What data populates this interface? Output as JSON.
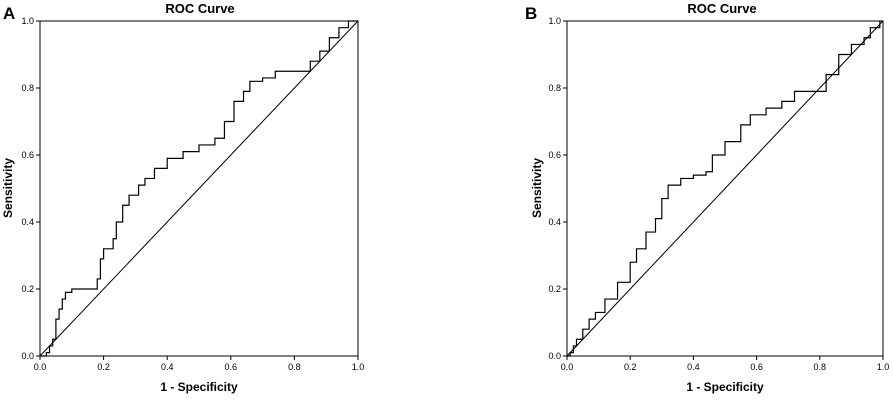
{
  "chart_data": [
    {
      "type": "line",
      "panel_label": "A",
      "title": "ROC Curve",
      "xlabel": "1 - Specificity",
      "ylabel": "Sensitivity",
      "xlim": [
        0,
        1
      ],
      "ylim": [
        0,
        1
      ],
      "xticks": [
        "0.0",
        "0.2",
        "0.4",
        "0.6",
        "0.8",
        "1.0"
      ],
      "yticks": [
        "0.0",
        "0.2",
        "0.4",
        "0.6",
        "0.8",
        "1.0"
      ],
      "grid": false,
      "series": [
        {
          "points": [
            [
              0,
              0
            ],
            [
              0.02,
              0.01
            ],
            [
              0.03,
              0.03
            ],
            [
              0.04,
              0.05
            ],
            [
              0.05,
              0.11
            ],
            [
              0.06,
              0.14
            ],
            [
              0.07,
              0.17
            ],
            [
              0.08,
              0.19
            ],
            [
              0.1,
              0.2
            ],
            [
              0.17,
              0.2
            ],
            [
              0.18,
              0.23
            ],
            [
              0.19,
              0.29
            ],
            [
              0.2,
              0.32
            ],
            [
              0.23,
              0.35
            ],
            [
              0.24,
              0.4
            ],
            [
              0.26,
              0.45
            ],
            [
              0.28,
              0.48
            ],
            [
              0.31,
              0.51
            ],
            [
              0.33,
              0.53
            ],
            [
              0.36,
              0.56
            ],
            [
              0.4,
              0.59
            ],
            [
              0.45,
              0.61
            ],
            [
              0.5,
              0.63
            ],
            [
              0.55,
              0.65
            ],
            [
              0.58,
              0.7
            ],
            [
              0.61,
              0.76
            ],
            [
              0.64,
              0.79
            ],
            [
              0.66,
              0.82
            ],
            [
              0.7,
              0.83
            ],
            [
              0.74,
              0.85
            ],
            [
              0.8,
              0.85
            ],
            [
              0.85,
              0.88
            ],
            [
              0.88,
              0.91
            ],
            [
              0.91,
              0.95
            ],
            [
              0.94,
              0.98
            ],
            [
              0.97,
              1.0
            ],
            [
              1.0,
              1.0
            ]
          ]
        },
        {
          "points": [
            [
              0,
              0
            ],
            [
              1,
              1
            ]
          ]
        }
      ]
    },
    {
      "type": "line",
      "panel_label": "B",
      "title": "ROC Curve",
      "xlabel": "1 - Specificity",
      "ylabel": "Sensitivity",
      "xlim": [
        0,
        1
      ],
      "ylim": [
        0,
        1
      ],
      "xticks": [
        "0.0",
        "0.2",
        "0.4",
        "0.6",
        "0.8",
        "1.0"
      ],
      "yticks": [
        "0.0",
        "0.2",
        "0.4",
        "0.6",
        "0.8",
        "1.0"
      ],
      "grid": false,
      "series": [
        {
          "points": [
            [
              0,
              0
            ],
            [
              0.01,
              0.01
            ],
            [
              0.02,
              0.03
            ],
            [
              0.03,
              0.05
            ],
            [
              0.05,
              0.08
            ],
            [
              0.07,
              0.11
            ],
            [
              0.09,
              0.13
            ],
            [
              0.12,
              0.17
            ],
            [
              0.16,
              0.22
            ],
            [
              0.2,
              0.28
            ],
            [
              0.22,
              0.32
            ],
            [
              0.25,
              0.37
            ],
            [
              0.28,
              0.41
            ],
            [
              0.3,
              0.47
            ],
            [
              0.32,
              0.51
            ],
            [
              0.36,
              0.53
            ],
            [
              0.4,
              0.54
            ],
            [
              0.44,
              0.55
            ],
            [
              0.46,
              0.6
            ],
            [
              0.5,
              0.64
            ],
            [
              0.55,
              0.69
            ],
            [
              0.58,
              0.72
            ],
            [
              0.63,
              0.74
            ],
            [
              0.68,
              0.76
            ],
            [
              0.72,
              0.79
            ],
            [
              0.78,
              0.79
            ],
            [
              0.82,
              0.84
            ],
            [
              0.86,
              0.9
            ],
            [
              0.9,
              0.93
            ],
            [
              0.94,
              0.95
            ],
            [
              0.96,
              0.98
            ],
            [
              0.99,
              1.0
            ],
            [
              1.0,
              1.0
            ]
          ]
        },
        {
          "points": [
            [
              0,
              0
            ],
            [
              1,
              1
            ]
          ]
        }
      ]
    }
  ]
}
